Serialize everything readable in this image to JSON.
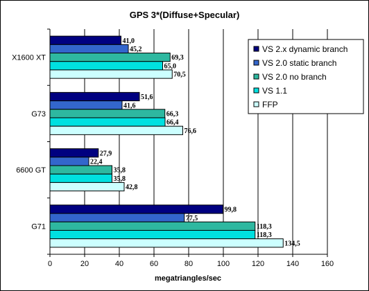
{
  "chart_data": {
    "type": "bar",
    "orientation": "horizontal",
    "title": "GPS 3*(Diffuse+Specular)",
    "xlabel": "megatriangles/sec",
    "ylabel": "",
    "xlim": [
      0,
      160
    ],
    "x_ticks": [
      "0",
      "20",
      "40",
      "60",
      "80",
      "100",
      "120",
      "140",
      "160"
    ],
    "grid": "vertical",
    "legend_position": "right",
    "categories": [
      "X1600 XT",
      "G73",
      "6600 GT",
      "G71"
    ],
    "series": [
      {
        "name": "VS 2.x dynamic branch",
        "color": "#000080",
        "values": [
          41.0,
          51.6,
          27.9,
          99.8
        ],
        "labels": [
          "41,0",
          "51,6",
          "27,9",
          "99,8"
        ]
      },
      {
        "name": "VS 2.0 static branch",
        "color": "#3366CC",
        "values": [
          45.2,
          41.6,
          22.4,
          77.5
        ],
        "labels": [
          "45,2",
          "41,6",
          "22,4",
          "77,5"
        ]
      },
      {
        "name": "VS 2.0 no branch",
        "color": "#2EB8A0",
        "values": [
          69.3,
          66.3,
          35.8,
          118.3
        ],
        "labels": [
          "69,3",
          "66,3",
          "35,8",
          "118,3"
        ]
      },
      {
        "name": "VS 1.1",
        "color": "#00E0E0",
        "values": [
          65.0,
          66.4,
          35.8,
          118.3
        ],
        "labels": [
          "65,0",
          "66,4",
          "35,8",
          "118,3"
        ]
      },
      {
        "name": "FFP",
        "color": "#CCFFFF",
        "values": [
          70.5,
          76.6,
          42.8,
          134.5
        ],
        "labels": [
          "70,5",
          "76,6",
          "42,8",
          "134,5"
        ]
      }
    ]
  }
}
